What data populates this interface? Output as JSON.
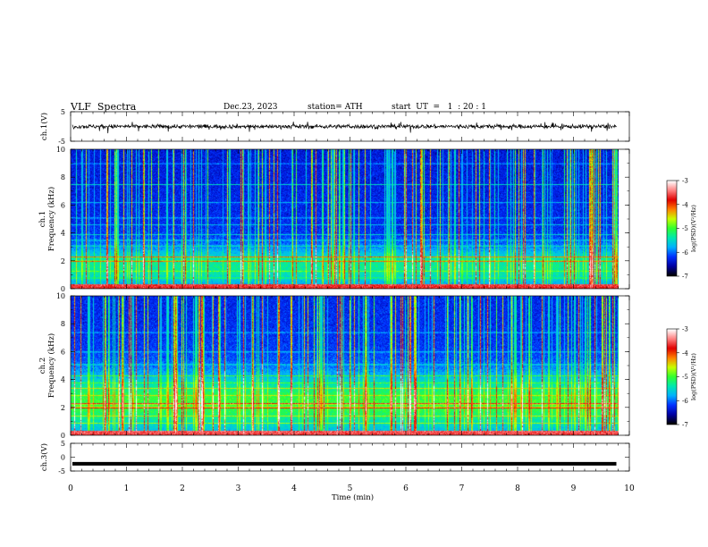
{
  "header": {
    "title": "VLF  Spectra",
    "date": "Dec.23, 2023",
    "station": "station= ATH",
    "start": "start  UT  =   1  : 20 : 1"
  },
  "chart_data": [
    {
      "type": "line",
      "panel": "ch1-waveform",
      "ylabel": "ch.1(V)",
      "ylim": [
        -5,
        5
      ],
      "yticks": [
        5,
        -5
      ],
      "xlim": [
        0,
        10
      ],
      "series": [
        {
          "approx_level": 0,
          "noise_amplitude": 1.2
        }
      ]
    },
    {
      "type": "heatmap",
      "panel": "ch1-spectrogram",
      "ylabel": [
        "ch.1",
        "Frequency  (kHz)"
      ],
      "ylim": [
        0,
        10
      ],
      "yticks": [
        0,
        2,
        4,
        6,
        8,
        10
      ],
      "xlim": [
        0,
        10
      ],
      "colorbar": {
        "label": "log(PSD)(V²/Hz)",
        "ticks": [
          -3,
          -4,
          -5,
          -6,
          -7
        ],
        "range": [
          -7,
          -3
        ]
      },
      "bands_khz": [
        0.8,
        1.3,
        2.0,
        2.3,
        3.1,
        3.5,
        3.9,
        4.6,
        5.1,
        6.2,
        7.5,
        9.0
      ]
    },
    {
      "type": "heatmap",
      "panel": "ch2-spectrogram",
      "ylabel": [
        "ch.2",
        "Frequency  (kHz)"
      ],
      "ylim": [
        0,
        10
      ],
      "yticks": [
        0,
        2,
        4,
        6,
        8,
        10
      ],
      "xlim": [
        0,
        10
      ],
      "colorbar": {
        "label": "log(PSD)(V²/Hz)",
        "ticks": [
          -3,
          -4,
          -5,
          -6,
          -7
        ],
        "range": [
          -7,
          -3
        ]
      },
      "bands_khz": [
        0.9,
        1.4,
        2.0,
        2.3,
        2.9,
        3.4,
        3.8,
        4.3,
        5.1,
        6.0,
        7.4
      ]
    },
    {
      "type": "line",
      "panel": "ch3-waveform",
      "ylabel": "ch.3(V)",
      "ylim": [
        -5,
        5
      ],
      "yticks": [
        5,
        0,
        -5
      ],
      "xlim": [
        0,
        10
      ],
      "series": [
        {
          "approx_level": -2.4,
          "noise_amplitude": 0
        }
      ]
    }
  ],
  "x_axis": {
    "label": "Time  (min)",
    "ticks": [
      0,
      1,
      2,
      3,
      4,
      5,
      6,
      7,
      8,
      9,
      10
    ],
    "range": [
      0,
      10
    ],
    "data_extent": 9.8
  },
  "colors": {
    "colormap": [
      "#000000",
      "#0000a0",
      "#0030ff",
      "#00b0ff",
      "#00e8b0",
      "#30ff30",
      "#c8ff00",
      "#ff8000",
      "#e00000",
      "#ff8080",
      "#ffffff"
    ]
  }
}
